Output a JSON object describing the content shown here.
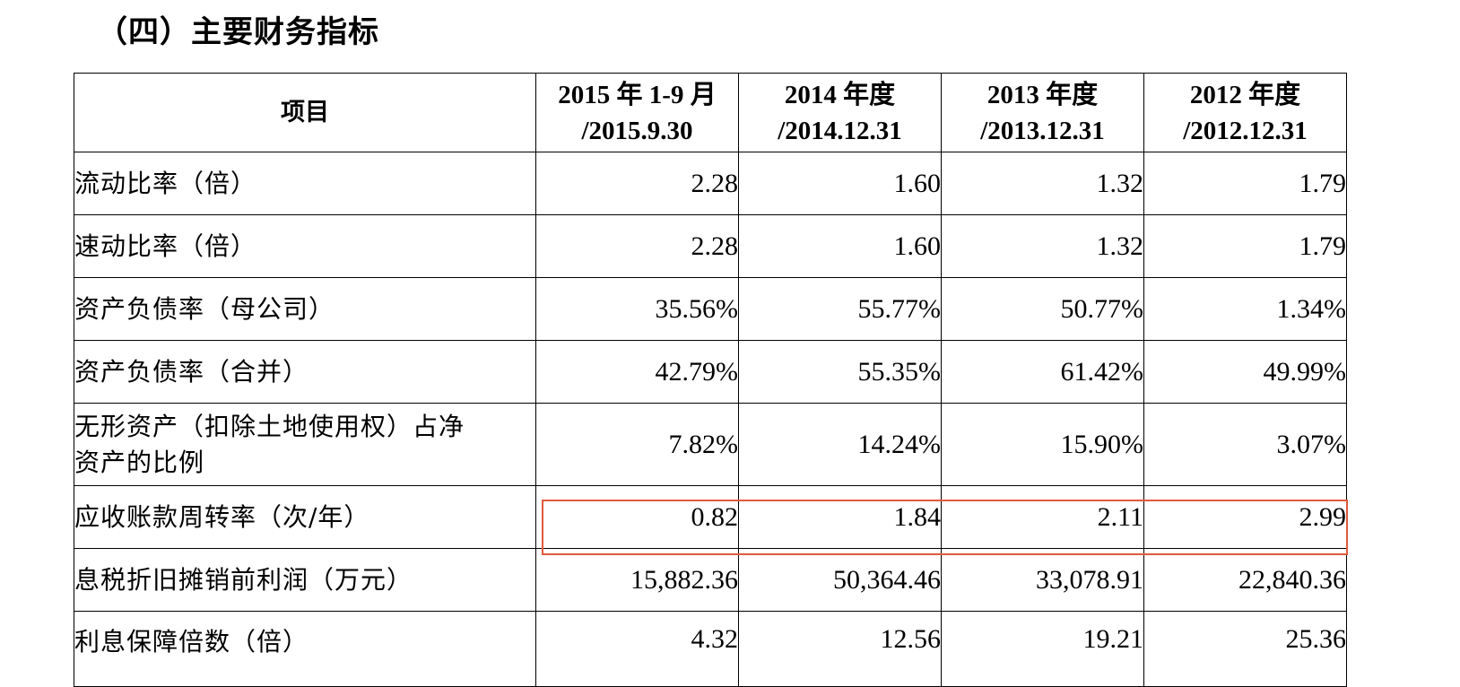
{
  "section_title": "（四）主要财务指标",
  "table": {
    "headers": [
      {
        "line1": "项目",
        "line2": ""
      },
      {
        "line1": "2015 年 1-9 月",
        "line2": "/2015.9.30"
      },
      {
        "line1": "2014 年度",
        "line2": "/2014.12.31"
      },
      {
        "line1": "2013 年度",
        "line2": "/2013.12.31"
      },
      {
        "line1": "2012 年度",
        "line2": "/2012.12.31"
      }
    ],
    "rows": [
      {
        "label": "流动比率（倍）",
        "values": [
          "2.28",
          "1.60",
          "1.32",
          "1.79"
        ]
      },
      {
        "label": "速动比率（倍）",
        "values": [
          "2.28",
          "1.60",
          "1.32",
          "1.79"
        ]
      },
      {
        "label": "资产负债率（母公司）",
        "values": [
          "35.56%",
          "55.77%",
          "50.77%",
          "1.34%"
        ]
      },
      {
        "label": "资产负债率（合并）",
        "values": [
          "42.79%",
          "55.35%",
          "61.42%",
          "49.99%"
        ]
      },
      {
        "label": "无形资产（扣除土地使用权）占净",
        "label_line2": "资产的比例",
        "values": [
          "7.82%",
          "14.24%",
          "15.90%",
          "3.07%"
        ]
      },
      {
        "label": "应收账款周转率（次/年）",
        "values": [
          "0.82",
          "1.84",
          "2.11",
          "2.99"
        ],
        "highlighted": true
      },
      {
        "label": "息税折旧摊销前利润（万元）",
        "values": [
          "15,882.36",
          "50,364.46",
          "33,078.91",
          "22,840.36"
        ]
      },
      {
        "label": "利息保障倍数（倍）",
        "values": [
          "4.32",
          "12.56",
          "19.21",
          "25.36"
        ]
      }
    ]
  },
  "highlight_color": "#e05a3c"
}
